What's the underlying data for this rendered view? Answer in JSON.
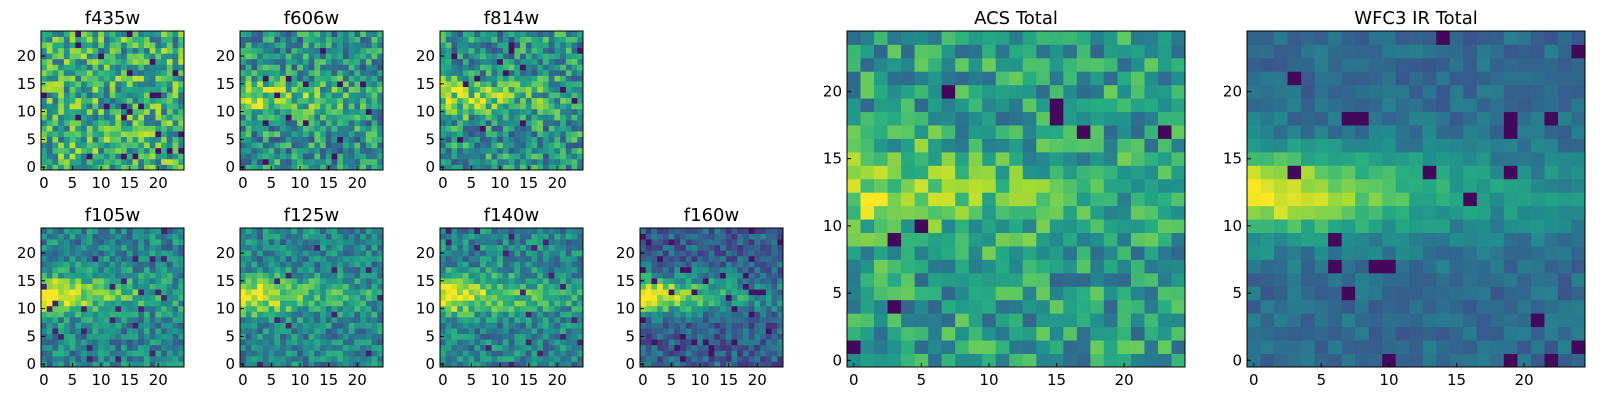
{
  "chart_data": [
    {
      "id": "f435w",
      "type": "heatmap",
      "title": "f435w",
      "grid_size": 25,
      "xticks": [
        0,
        5,
        10,
        15,
        20
      ],
      "yticks": [
        0,
        5,
        10,
        15,
        20
      ],
      "xlim": [
        0,
        24
      ],
      "ylim": [
        0,
        24
      ],
      "colormap": "viridis",
      "pattern": "noise"
    },
    {
      "id": "f606w",
      "type": "heatmap",
      "title": "f606w",
      "grid_size": 25,
      "xticks": [
        0,
        5,
        10,
        15,
        20
      ],
      "yticks": [
        0,
        5,
        10,
        15,
        20
      ],
      "xlim": [
        0,
        24
      ],
      "ylim": [
        0,
        24
      ],
      "colormap": "viridis",
      "pattern": "faint-band"
    },
    {
      "id": "f814w",
      "type": "heatmap",
      "title": "f814w",
      "grid_size": 25,
      "xticks": [
        0,
        5,
        10,
        15,
        20
      ],
      "yticks": [
        0,
        5,
        10,
        15,
        20
      ],
      "xlim": [
        0,
        24
      ],
      "ylim": [
        0,
        24
      ],
      "colormap": "viridis",
      "pattern": "faint-band"
    },
    {
      "id": "f105w",
      "type": "heatmap",
      "title": "f105w",
      "grid_size": 25,
      "xticks": [
        0,
        5,
        10,
        15,
        20
      ],
      "yticks": [
        0,
        5,
        10,
        15,
        20
      ],
      "xlim": [
        0,
        24
      ],
      "ylim": [
        0,
        24
      ],
      "colormap": "viridis",
      "pattern": "band"
    },
    {
      "id": "f125w",
      "type": "heatmap",
      "title": "f125w",
      "grid_size": 25,
      "xticks": [
        0,
        5,
        10,
        15,
        20
      ],
      "yticks": [
        0,
        5,
        10,
        15,
        20
      ],
      "xlim": [
        0,
        24
      ],
      "ylim": [
        0,
        24
      ],
      "colormap": "viridis",
      "pattern": "band"
    },
    {
      "id": "f140w",
      "type": "heatmap",
      "title": "f140w",
      "grid_size": 25,
      "xticks": [
        0,
        5,
        10,
        15,
        20
      ],
      "yticks": [
        0,
        5,
        10,
        15,
        20
      ],
      "xlim": [
        0,
        24
      ],
      "ylim": [
        0,
        24
      ],
      "colormap": "viridis",
      "pattern": "band"
    },
    {
      "id": "f160w",
      "type": "heatmap",
      "title": "f160w",
      "grid_size": 25,
      "xticks": [
        0,
        5,
        10,
        15,
        20
      ],
      "yticks": [
        0,
        5,
        10,
        15,
        20
      ],
      "xlim": [
        0,
        24
      ],
      "ylim": [
        0,
        24
      ],
      "colormap": "viridis",
      "pattern": "band-dark"
    },
    {
      "id": "acs-total",
      "type": "heatmap",
      "title": "ACS Total",
      "grid_size": 25,
      "xticks": [
        0,
        5,
        10,
        15,
        20
      ],
      "yticks": [
        0,
        5,
        10,
        15,
        20
      ],
      "xlim": [
        0,
        24
      ],
      "ylim": [
        0,
        24
      ],
      "colormap": "viridis",
      "pattern": "acs-total"
    },
    {
      "id": "wfc3-ir-total",
      "type": "heatmap",
      "title": "WFC3 IR Total",
      "grid_size": 25,
      "xticks": [
        0,
        5,
        10,
        15,
        20
      ],
      "yticks": [
        0,
        5,
        10,
        15,
        20
      ],
      "xlim": [
        0,
        24
      ],
      "ylim": [
        0,
        24
      ],
      "colormap": "viridis",
      "pattern": "ir-total"
    }
  ]
}
